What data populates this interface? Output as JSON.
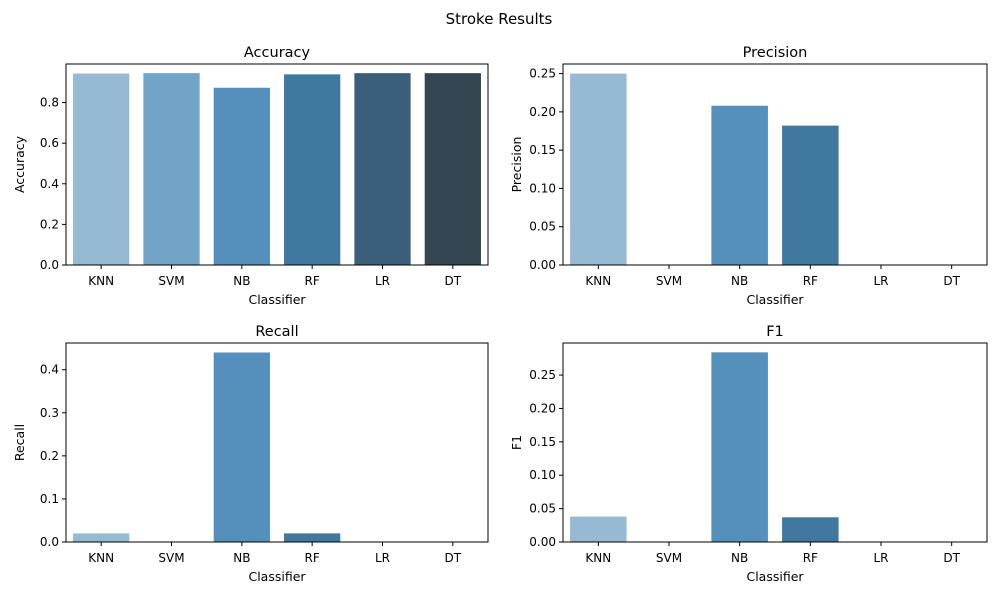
{
  "figure_title": "Stroke Results",
  "palette": [
    "#96bad4",
    "#72a4c8",
    "#558fbb",
    "#4178a0",
    "#3b5e7b",
    "#354653"
  ],
  "chart_data": [
    {
      "type": "bar",
      "title": "Accuracy",
      "xlabel": "Classifier",
      "ylabel": "Accuracy",
      "categories": [
        "KNN",
        "SVM",
        "NB",
        "RF",
        "LR",
        "DT"
      ],
      "values": [
        0.943,
        0.945,
        0.873,
        0.939,
        0.945,
        0.945
      ],
      "ylim": [
        0,
        0.99
      ],
      "yticks": [
        0.0,
        0.2,
        0.4,
        0.6,
        0.8
      ],
      "ytick_labels": [
        "0.0",
        "0.2",
        "0.4",
        "0.6",
        "0.8"
      ],
      "grid": false
    },
    {
      "type": "bar",
      "title": "Precision",
      "xlabel": "Classifier",
      "ylabel": "Precision",
      "categories": [
        "KNN",
        "SVM",
        "NB",
        "RF",
        "LR",
        "DT"
      ],
      "values": [
        0.25,
        0.0,
        0.208,
        0.182,
        0.0,
        0.0
      ],
      "ylim": [
        0,
        0.2625
      ],
      "yticks": [
        0.0,
        0.05,
        0.1,
        0.15,
        0.2,
        0.25
      ],
      "ytick_labels": [
        "0.00",
        "0.05",
        "0.10",
        "0.15",
        "0.20",
        "0.25"
      ],
      "grid": false
    },
    {
      "type": "bar",
      "title": "Recall",
      "xlabel": "Classifier",
      "ylabel": "Recall",
      "categories": [
        "KNN",
        "SVM",
        "NB",
        "RF",
        "LR",
        "DT"
      ],
      "values": [
        0.02,
        0.0,
        0.44,
        0.02,
        0.0,
        0.0
      ],
      "ylim": [
        0,
        0.462
      ],
      "yticks": [
        0.0,
        0.1,
        0.2,
        0.3,
        0.4
      ],
      "ytick_labels": [
        "0.0",
        "0.1",
        "0.2",
        "0.3",
        "0.4"
      ],
      "grid": false
    },
    {
      "type": "bar",
      "title": "F1",
      "xlabel": "Classifier",
      "ylabel": "F1",
      "categories": [
        "KNN",
        "SVM",
        "NB",
        "RF",
        "LR",
        "DT"
      ],
      "values": [
        0.038,
        0.0,
        0.284,
        0.037,
        0.0,
        0.0
      ],
      "ylim": [
        0,
        0.298
      ],
      "yticks": [
        0.0,
        0.05,
        0.1,
        0.15,
        0.2,
        0.25
      ],
      "ytick_labels": [
        "0.00",
        "0.05",
        "0.10",
        "0.15",
        "0.20",
        "0.25"
      ],
      "grid": false
    }
  ]
}
